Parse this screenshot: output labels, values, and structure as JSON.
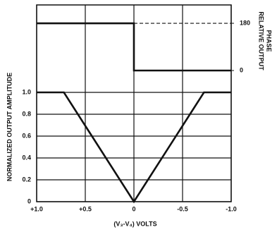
{
  "chart_data": {
    "type": "line",
    "ylabel": "NORMALIZED OUTPUT AMPLITUDE",
    "y2label": [
      "RELATIVE OUTPUT",
      "PHASE"
    ],
    "xlabel": "(V₃-V₄) VOLTS",
    "xlim": [
      1,
      -1
    ],
    "xticks": [
      {
        "value": 1,
        "label": "+1.0"
      },
      {
        "value": 0.5,
        "label": "+0.5"
      },
      0,
      -0.5,
      {
        "value": -1,
        "label": "-1.0"
      }
    ],
    "ylim": [
      0,
      1.8
    ],
    "yticks": [
      0,
      0.2,
      0.4,
      0.6,
      0.8,
      {
        "value": 1,
        "label": "1.0"
      }
    ],
    "y2lim": [
      -500,
      250
    ],
    "y2ticks": [
      180,
      0
    ],
    "grid": true,
    "series": [
      {
        "color": "#111111",
        "x": [
          1,
          0.72,
          0,
          -0.72,
          -1
        ],
        "values": [
          1,
          1,
          0,
          1,
          1
        ]
      },
      {
        "color": "#111111",
        "axis": "y2",
        "x": [
          1,
          0,
          0,
          -1
        ],
        "values": [
          180,
          180,
          0,
          0
        ]
      },
      {
        "color": "#111111",
        "axis": "y2",
        "dashed": true,
        "x": [
          0,
          -1
        ],
        "values": [
          180,
          180
        ]
      }
    ]
  }
}
